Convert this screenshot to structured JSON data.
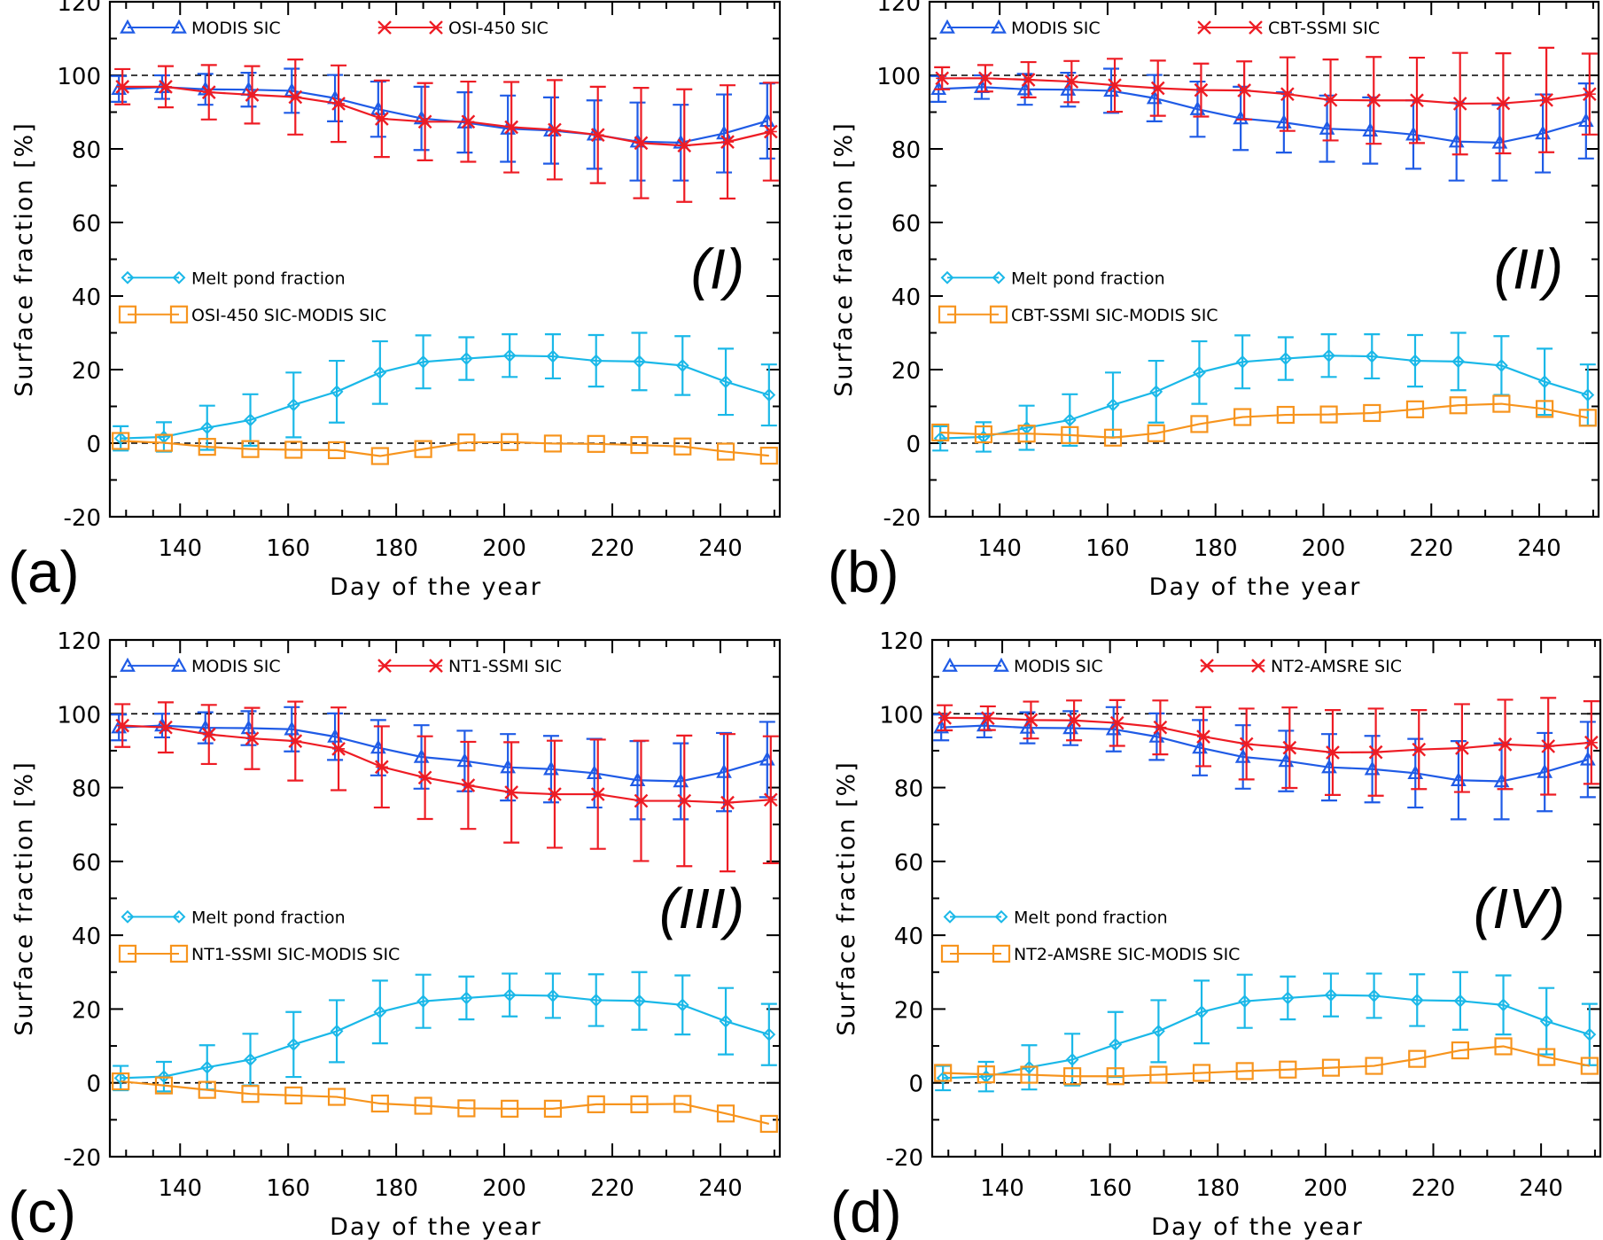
{
  "chart_data": {
    "type": "line",
    "x": [
      129,
      137,
      145,
      153,
      161,
      169,
      177,
      185,
      193,
      201,
      209,
      217,
      225,
      233,
      241,
      249
    ],
    "xlabel": "Day of the year",
    "ylabel": "Surface fraction [%]",
    "xlim": [
      127,
      251
    ],
    "ylim": [
      -20,
      120
    ],
    "xticks": [
      140,
      160,
      180,
      200,
      220,
      240
    ],
    "yticks": [
      -20,
      0,
      20,
      40,
      60,
      80,
      100,
      120
    ],
    "reference_lines": [
      0,
      100
    ],
    "colors": {
      "modis": "#1f5be6",
      "product": "#ee1c24",
      "meltpond": "#1ab8e8",
      "difference": "#f7941d"
    },
    "common": {
      "modis": {
        "name": "MODIS SIC",
        "values": [
          96.3,
          96.8,
          96.2,
          96.1,
          95.8,
          93.8,
          90.8,
          88.3,
          87.2,
          85.5,
          85.0,
          83.9,
          82.0,
          81.7,
          84.2,
          87.6
        ],
        "errors": [
          3.5,
          3.2,
          4.2,
          4.6,
          6.0,
          6.3,
          7.5,
          8.6,
          8.2,
          9.0,
          9.0,
          9.3,
          10.6,
          10.3,
          10.6,
          10.2
        ]
      },
      "meltpond": {
        "name": "Melt pond fraction",
        "values": [
          1.3,
          1.7,
          4.2,
          6.3,
          10.4,
          14.0,
          19.2,
          22.1,
          23.0,
          23.8,
          23.6,
          22.4,
          22.2,
          21.1,
          16.7,
          13.1
        ],
        "errors": [
          3.3,
          4.0,
          6.0,
          7.0,
          8.8,
          8.4,
          8.5,
          7.2,
          5.8,
          5.8,
          6.0,
          7.0,
          7.8,
          8.0,
          9.0,
          8.3
        ]
      }
    },
    "panels": [
      {
        "label": "(a)",
        "roman": "(I)",
        "product": {
          "name": "OSI-450 SIC",
          "values": [
            96.9,
            96.9,
            95.4,
            94.7,
            94.1,
            92.3,
            88.2,
            87.4,
            87.4,
            85.9,
            85.2,
            83.8,
            81.6,
            80.9,
            81.9,
            84.7
          ],
          "errors": [
            4.8,
            5.6,
            7.4,
            7.8,
            10.2,
            10.4,
            10.4,
            10.5,
            10.9,
            12.3,
            13.5,
            13.1,
            15.0,
            15.3,
            15.4,
            13.3
          ]
        },
        "difference": {
          "name": "OSI-450 SIC-MODIS SIC",
          "values": [
            0.6,
            0.1,
            -1.0,
            -1.6,
            -1.8,
            -1.9,
            -3.5,
            -1.6,
            0.2,
            0.3,
            -0.1,
            -0.2,
            -0.5,
            -0.9,
            -2.3,
            -3.4
          ]
        }
      },
      {
        "label": "(b)",
        "roman": "(II)",
        "product": {
          "name": "CBT-SSMI SIC",
          "values": [
            99.2,
            99.2,
            98.8,
            98.3,
            97.3,
            96.5,
            96.0,
            95.9,
            94.9,
            93.3,
            93.2,
            93.2,
            92.3,
            92.4,
            93.3,
            94.9
          ],
          "errors": [
            3.0,
            3.6,
            4.8,
            5.6,
            7.2,
            7.5,
            7.2,
            7.9,
            10.0,
            11.0,
            11.8,
            11.6,
            13.8,
            13.6,
            14.2,
            11.0
          ]
        },
        "difference": {
          "name": "CBT-SSMI SIC-MODIS SIC",
          "values": [
            2.9,
            2.4,
            2.6,
            2.2,
            1.5,
            2.7,
            5.2,
            7.1,
            7.7,
            7.8,
            8.2,
            9.2,
            10.3,
            10.7,
            9.3,
            6.9
          ]
        }
      },
      {
        "label": "(c)",
        "roman": "(III)",
        "product": {
          "name": "NT1-SSMI SIC",
          "values": [
            96.8,
            96.3,
            94.4,
            93.3,
            92.6,
            90.5,
            85.6,
            82.7,
            80.6,
            78.7,
            78.2,
            78.2,
            76.4,
            76.4,
            75.9,
            76.7
          ],
          "errors": [
            5.8,
            6.8,
            8.0,
            8.3,
            10.7,
            11.2,
            11.0,
            11.2,
            11.8,
            13.6,
            14.5,
            14.8,
            16.3,
            17.7,
            18.6,
            17.2
          ]
        },
        "difference": {
          "name": "NT1-SSMI SIC-MODIS SIC",
          "values": [
            0.4,
            -0.7,
            -1.9,
            -3.0,
            -3.4,
            -3.8,
            -5.6,
            -6.2,
            -6.9,
            -7.0,
            -7.0,
            -5.8,
            -5.8,
            -5.7,
            -8.3,
            -11.1
          ]
        }
      },
      {
        "label": "(d)",
        "roman": "(IV)",
        "product": {
          "name": "NT2-AMSRE SIC",
          "values": [
            98.9,
            98.8,
            98.3,
            98.2,
            97.5,
            96.3,
            93.8,
            91.8,
            90.8,
            89.5,
            89.6,
            90.3,
            90.7,
            91.7,
            91.2,
            92.2
          ],
          "errors": [
            3.4,
            3.2,
            5.0,
            5.4,
            6.2,
            7.3,
            8.0,
            9.6,
            10.9,
            11.5,
            11.8,
            10.7,
            11.9,
            12.1,
            13.1,
            11.2
          ]
        },
        "difference": {
          "name": "NT2-AMSRE SIC-MODIS SIC",
          "values": [
            2.7,
            2.3,
            2.2,
            1.8,
            1.8,
            2.2,
            2.7,
            3.2,
            3.6,
            4.1,
            4.6,
            6.5,
            8.8,
            9.9,
            7.0,
            4.6
          ]
        }
      }
    ]
  }
}
